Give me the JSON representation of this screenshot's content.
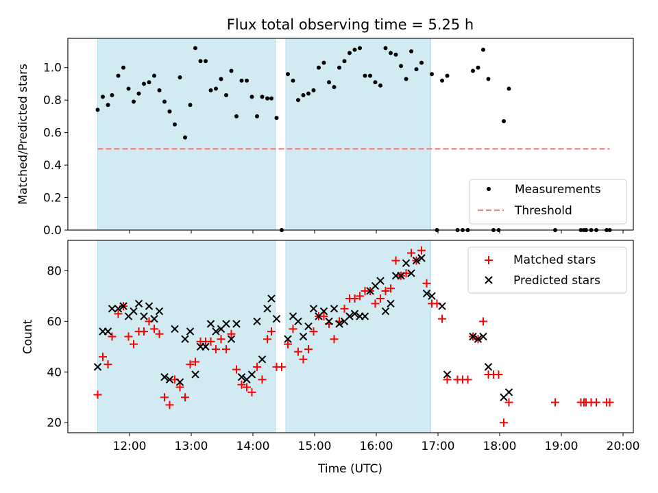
{
  "figure": {
    "title": "Flux total observing time = 5.25 h",
    "xlabel": "Time (UTC)"
  },
  "style": {
    "shade_color": "#add8e6",
    "measurement_color": "#000000",
    "threshold_color": "#f08080",
    "matched_color": "#ff0000",
    "predicted_color": "#000000"
  },
  "chart_data": [
    {
      "type": "scatter",
      "ylabel": "Matched/Predicted stars",
      "xlim": [
        "11:00",
        "20:10"
      ],
      "ylim": [
        0,
        1.18
      ],
      "yticks": [
        0.0,
        0.2,
        0.4,
        0.6,
        0.8,
        1.0
      ],
      "grid": false,
      "legend_position": "lower right",
      "shaded_intervals": [
        [
          "11:29",
          "14:22"
        ],
        [
          "14:32",
          "16:53"
        ]
      ],
      "threshold": {
        "name": "Threshold",
        "value": 0.5,
        "x_range": [
          "11:29",
          "19:47"
        ]
      },
      "series": [
        {
          "name": "Measurements",
          "points": [
            [
              "11:29",
              0.74
            ],
            [
              "11:34",
              0.82
            ],
            [
              "11:39",
              0.77
            ],
            [
              "11:43",
              0.83
            ],
            [
              "11:49",
              0.95
            ],
            [
              "11:54",
              1.0
            ],
            [
              "11:59",
              0.87
            ],
            [
              "12:04",
              0.79
            ],
            [
              "12:09",
              0.84
            ],
            [
              "12:14",
              0.9
            ],
            [
              "12:19",
              0.91
            ],
            [
              "12:24",
              0.95
            ],
            [
              "12:29",
              0.86
            ],
            [
              "12:34",
              0.79
            ],
            [
              "12:39",
              0.73
            ],
            [
              "12:44",
              0.65
            ],
            [
              "12:49",
              0.94
            ],
            [
              "12:54",
              0.57
            ],
            [
              "12:59",
              0.77
            ],
            [
              "13:04",
              1.12
            ],
            [
              "13:09",
              1.04
            ],
            [
              "13:14",
              1.04
            ],
            [
              "13:19",
              0.86
            ],
            [
              "13:24",
              0.87
            ],
            [
              "13:29",
              0.93
            ],
            [
              "13:34",
              0.83
            ],
            [
              "13:39",
              0.98
            ],
            [
              "13:44",
              0.7
            ],
            [
              "13:49",
              0.92
            ],
            [
              "13:54",
              0.92
            ],
            [
              "13:59",
              0.82
            ],
            [
              "14:04",
              0.7
            ],
            [
              "14:09",
              0.82
            ],
            [
              "14:14",
              0.81
            ],
            [
              "14:18",
              0.81
            ],
            [
              "14:23",
              0.69
            ],
            [
              "14:28",
              0.0
            ],
            [
              "14:34",
              0.96
            ],
            [
              "14:39",
              0.92
            ],
            [
              "14:44",
              0.8
            ],
            [
              "14:49",
              0.83
            ],
            [
              "14:54",
              0.84
            ],
            [
              "14:59",
              0.86
            ],
            [
              "15:04",
              1.0
            ],
            [
              "15:09",
              1.03
            ],
            [
              "15:14",
              0.91
            ],
            [
              "15:19",
              0.88
            ],
            [
              "15:24",
              1.0
            ],
            [
              "15:29",
              1.04
            ],
            [
              "15:34",
              1.09
            ],
            [
              "15:39",
              1.11
            ],
            [
              "15:44",
              1.12
            ],
            [
              "15:49",
              0.95
            ],
            [
              "15:54",
              0.95
            ],
            [
              "15:59",
              0.91
            ],
            [
              "16:04",
              0.89
            ],
            [
              "16:09",
              1.12
            ],
            [
              "16:14",
              1.09
            ],
            [
              "16:19",
              1.08
            ],
            [
              "16:24",
              1.01
            ],
            [
              "16:29",
              0.93
            ],
            [
              "16:34",
              1.1
            ],
            [
              "16:39",
              0.99
            ],
            [
              "16:44",
              1.03
            ],
            [
              "16:54",
              0.96
            ],
            [
              "16:59",
              0.0
            ],
            [
              "17:04",
              0.92
            ],
            [
              "17:09",
              0.95
            ],
            [
              "17:19",
              0.0
            ],
            [
              "17:24",
              0.0
            ],
            [
              "17:29",
              0.0
            ],
            [
              "17:34",
              0.98
            ],
            [
              "17:39",
              1.0
            ],
            [
              "17:44",
              1.11
            ],
            [
              "17:49",
              0.93
            ],
            [
              "17:54",
              0.0
            ],
            [
              "17:59",
              0.0
            ],
            [
              "18:04",
              0.67
            ],
            [
              "18:09",
              0.87
            ],
            [
              "18:54",
              0.0
            ],
            [
              "19:19",
              0.0
            ],
            [
              "19:22",
              0.0
            ],
            [
              "19:24",
              0.0
            ],
            [
              "19:29",
              0.0
            ],
            [
              "19:34",
              0.0
            ],
            [
              "19:44",
              0.0
            ],
            [
              "19:47",
              0.0
            ]
          ]
        }
      ]
    },
    {
      "type": "scatter",
      "ylabel": "Count",
      "xlim": [
        "11:00",
        "20:10"
      ],
      "ylim": [
        16,
        92
      ],
      "yticks": [
        20,
        40,
        60,
        80
      ],
      "xticks": [
        "12:00",
        "13:00",
        "14:00",
        "15:00",
        "16:00",
        "17:00",
        "18:00",
        "19:00",
        "20:00"
      ],
      "grid": false,
      "legend_position": "upper right",
      "shaded_intervals": [
        [
          "11:29",
          "14:22"
        ],
        [
          "14:32",
          "16:53"
        ]
      ],
      "series": [
        {
          "name": "Matched stars",
          "marker": "+",
          "points": [
            [
              "11:29",
              31
            ],
            [
              "11:34",
              46
            ],
            [
              "11:39",
              43
            ],
            [
              "11:43",
              54
            ],
            [
              "11:49",
              63
            ],
            [
              "11:54",
              66
            ],
            [
              "11:59",
              54
            ],
            [
              "12:04",
              51
            ],
            [
              "12:09",
              56
            ],
            [
              "12:14",
              56
            ],
            [
              "12:19",
              60
            ],
            [
              "12:24",
              57
            ],
            [
              "12:29",
              55
            ],
            [
              "12:34",
              30
            ],
            [
              "12:39",
              27
            ],
            [
              "12:44",
              37
            ],
            [
              "12:49",
              34
            ],
            [
              "12:54",
              30
            ],
            [
              "12:59",
              43
            ],
            [
              "13:04",
              44
            ],
            [
              "13:09",
              52
            ],
            [
              "13:14",
              52
            ],
            [
              "13:19",
              52
            ],
            [
              "13:24",
              49
            ],
            [
              "13:29",
              53
            ],
            [
              "13:34",
              49
            ],
            [
              "13:39",
              55
            ],
            [
              "13:44",
              41
            ],
            [
              "13:49",
              35
            ],
            [
              "13:54",
              34
            ],
            [
              "13:59",
              32
            ],
            [
              "14:04",
              42
            ],
            [
              "14:09",
              37
            ],
            [
              "14:14",
              53
            ],
            [
              "14:18",
              56
            ],
            [
              "14:23",
              42
            ],
            [
              "14:28",
              42
            ],
            [
              "14:34",
              51
            ],
            [
              "14:39",
              57
            ],
            [
              "14:44",
              48
            ],
            [
              "14:49",
              45
            ],
            [
              "14:54",
              49
            ],
            [
              "14:59",
              56
            ],
            [
              "15:04",
              62
            ],
            [
              "15:09",
              62
            ],
            [
              "15:14",
              59
            ],
            [
              "15:19",
              53
            ],
            [
              "15:24",
              60
            ],
            [
              "15:29",
              65
            ],
            [
              "15:34",
              69
            ],
            [
              "15:39",
              69
            ],
            [
              "15:44",
              70
            ],
            [
              "15:49",
              72
            ],
            [
              "15:54",
              72
            ],
            [
              "15:59",
              67
            ],
            [
              "16:04",
              69
            ],
            [
              "16:09",
              72
            ],
            [
              "16:14",
              73
            ],
            [
              "16:19",
              84
            ],
            [
              "16:24",
              78
            ],
            [
              "16:29",
              79
            ],
            [
              "16:34",
              87
            ],
            [
              "16:39",
              84
            ],
            [
              "16:44",
              88
            ],
            [
              "16:49",
              75
            ],
            [
              "16:54",
              67
            ],
            [
              "16:59",
              67
            ],
            [
              "17:04",
              61
            ],
            [
              "17:09",
              37
            ],
            [
              "17:19",
              37
            ],
            [
              "17:24",
              37
            ],
            [
              "17:29",
              37
            ],
            [
              "17:34",
              54
            ],
            [
              "17:39",
              53
            ],
            [
              "17:44",
              60
            ],
            [
              "17:49",
              39
            ],
            [
              "17:54",
              39
            ],
            [
              "17:59",
              39
            ],
            [
              "18:04",
              20
            ],
            [
              "18:09",
              28
            ],
            [
              "18:54",
              28
            ],
            [
              "19:19",
              28
            ],
            [
              "19:22",
              28
            ],
            [
              "19:24",
              28
            ],
            [
              "19:29",
              28
            ],
            [
              "19:34",
              28
            ],
            [
              "19:44",
              28
            ],
            [
              "19:47",
              28
            ]
          ]
        },
        {
          "name": "Predicted stars",
          "marker": "x",
          "points": [
            [
              "11:29",
              42
            ],
            [
              "11:34",
              56
            ],
            [
              "11:39",
              56
            ],
            [
              "11:43",
              65
            ],
            [
              "11:49",
              65
            ],
            [
              "11:54",
              66
            ],
            [
              "11:59",
              62
            ],
            [
              "12:04",
              64
            ],
            [
              "12:09",
              67
            ],
            [
              "12:14",
              62
            ],
            [
              "12:19",
              66
            ],
            [
              "12:24",
              61
            ],
            [
              "12:29",
              64
            ],
            [
              "12:34",
              38
            ],
            [
              "12:39",
              37
            ],
            [
              "12:44",
              57
            ],
            [
              "12:49",
              36
            ],
            [
              "12:54",
              53
            ],
            [
              "12:59",
              56
            ],
            [
              "13:04",
              39
            ],
            [
              "13:09",
              50
            ],
            [
              "13:14",
              50
            ],
            [
              "13:19",
              59
            ],
            [
              "13:24",
              56
            ],
            [
              "13:29",
              57
            ],
            [
              "13:34",
              59
            ],
            [
              "13:39",
              53
            ],
            [
              "13:44",
              59
            ],
            [
              "13:49",
              38
            ],
            [
              "13:54",
              37
            ],
            [
              "13:59",
              39
            ],
            [
              "14:04",
              60
            ],
            [
              "14:09",
              45
            ],
            [
              "14:14",
              65
            ],
            [
              "14:18",
              69
            ],
            [
              "14:23",
              61
            ],
            [
              "14:34",
              53
            ],
            [
              "14:39",
              62
            ],
            [
              "14:44",
              60
            ],
            [
              "14:49",
              54
            ],
            [
              "14:54",
              58
            ],
            [
              "14:59",
              65
            ],
            [
              "15:04",
              62
            ],
            [
              "15:09",
              64
            ],
            [
              "15:14",
              60
            ],
            [
              "15:19",
              65
            ],
            [
              "15:24",
              59
            ],
            [
              "15:29",
              60
            ],
            [
              "15:34",
              62
            ],
            [
              "15:39",
              63
            ],
            [
              "15:44",
              62
            ],
            [
              "15:49",
              62
            ],
            [
              "15:54",
              72
            ],
            [
              "15:59",
              74
            ],
            [
              "16:04",
              76
            ],
            [
              "16:09",
              64
            ],
            [
              "16:14",
              67
            ],
            [
              "16:19",
              78
            ],
            [
              "16:24",
              78
            ],
            [
              "16:29",
              83
            ],
            [
              "16:34",
              79
            ],
            [
              "16:39",
              84
            ],
            [
              "16:44",
              85
            ],
            [
              "16:49",
              71
            ],
            [
              "16:54",
              70
            ],
            [
              "17:04",
              66
            ],
            [
              "17:09",
              39
            ],
            [
              "17:34",
              54
            ],
            [
              "17:39",
              53
            ],
            [
              "17:44",
              54
            ],
            [
              "17:49",
              42
            ],
            [
              "18:04",
              30
            ],
            [
              "18:09",
              32
            ]
          ]
        }
      ]
    }
  ]
}
